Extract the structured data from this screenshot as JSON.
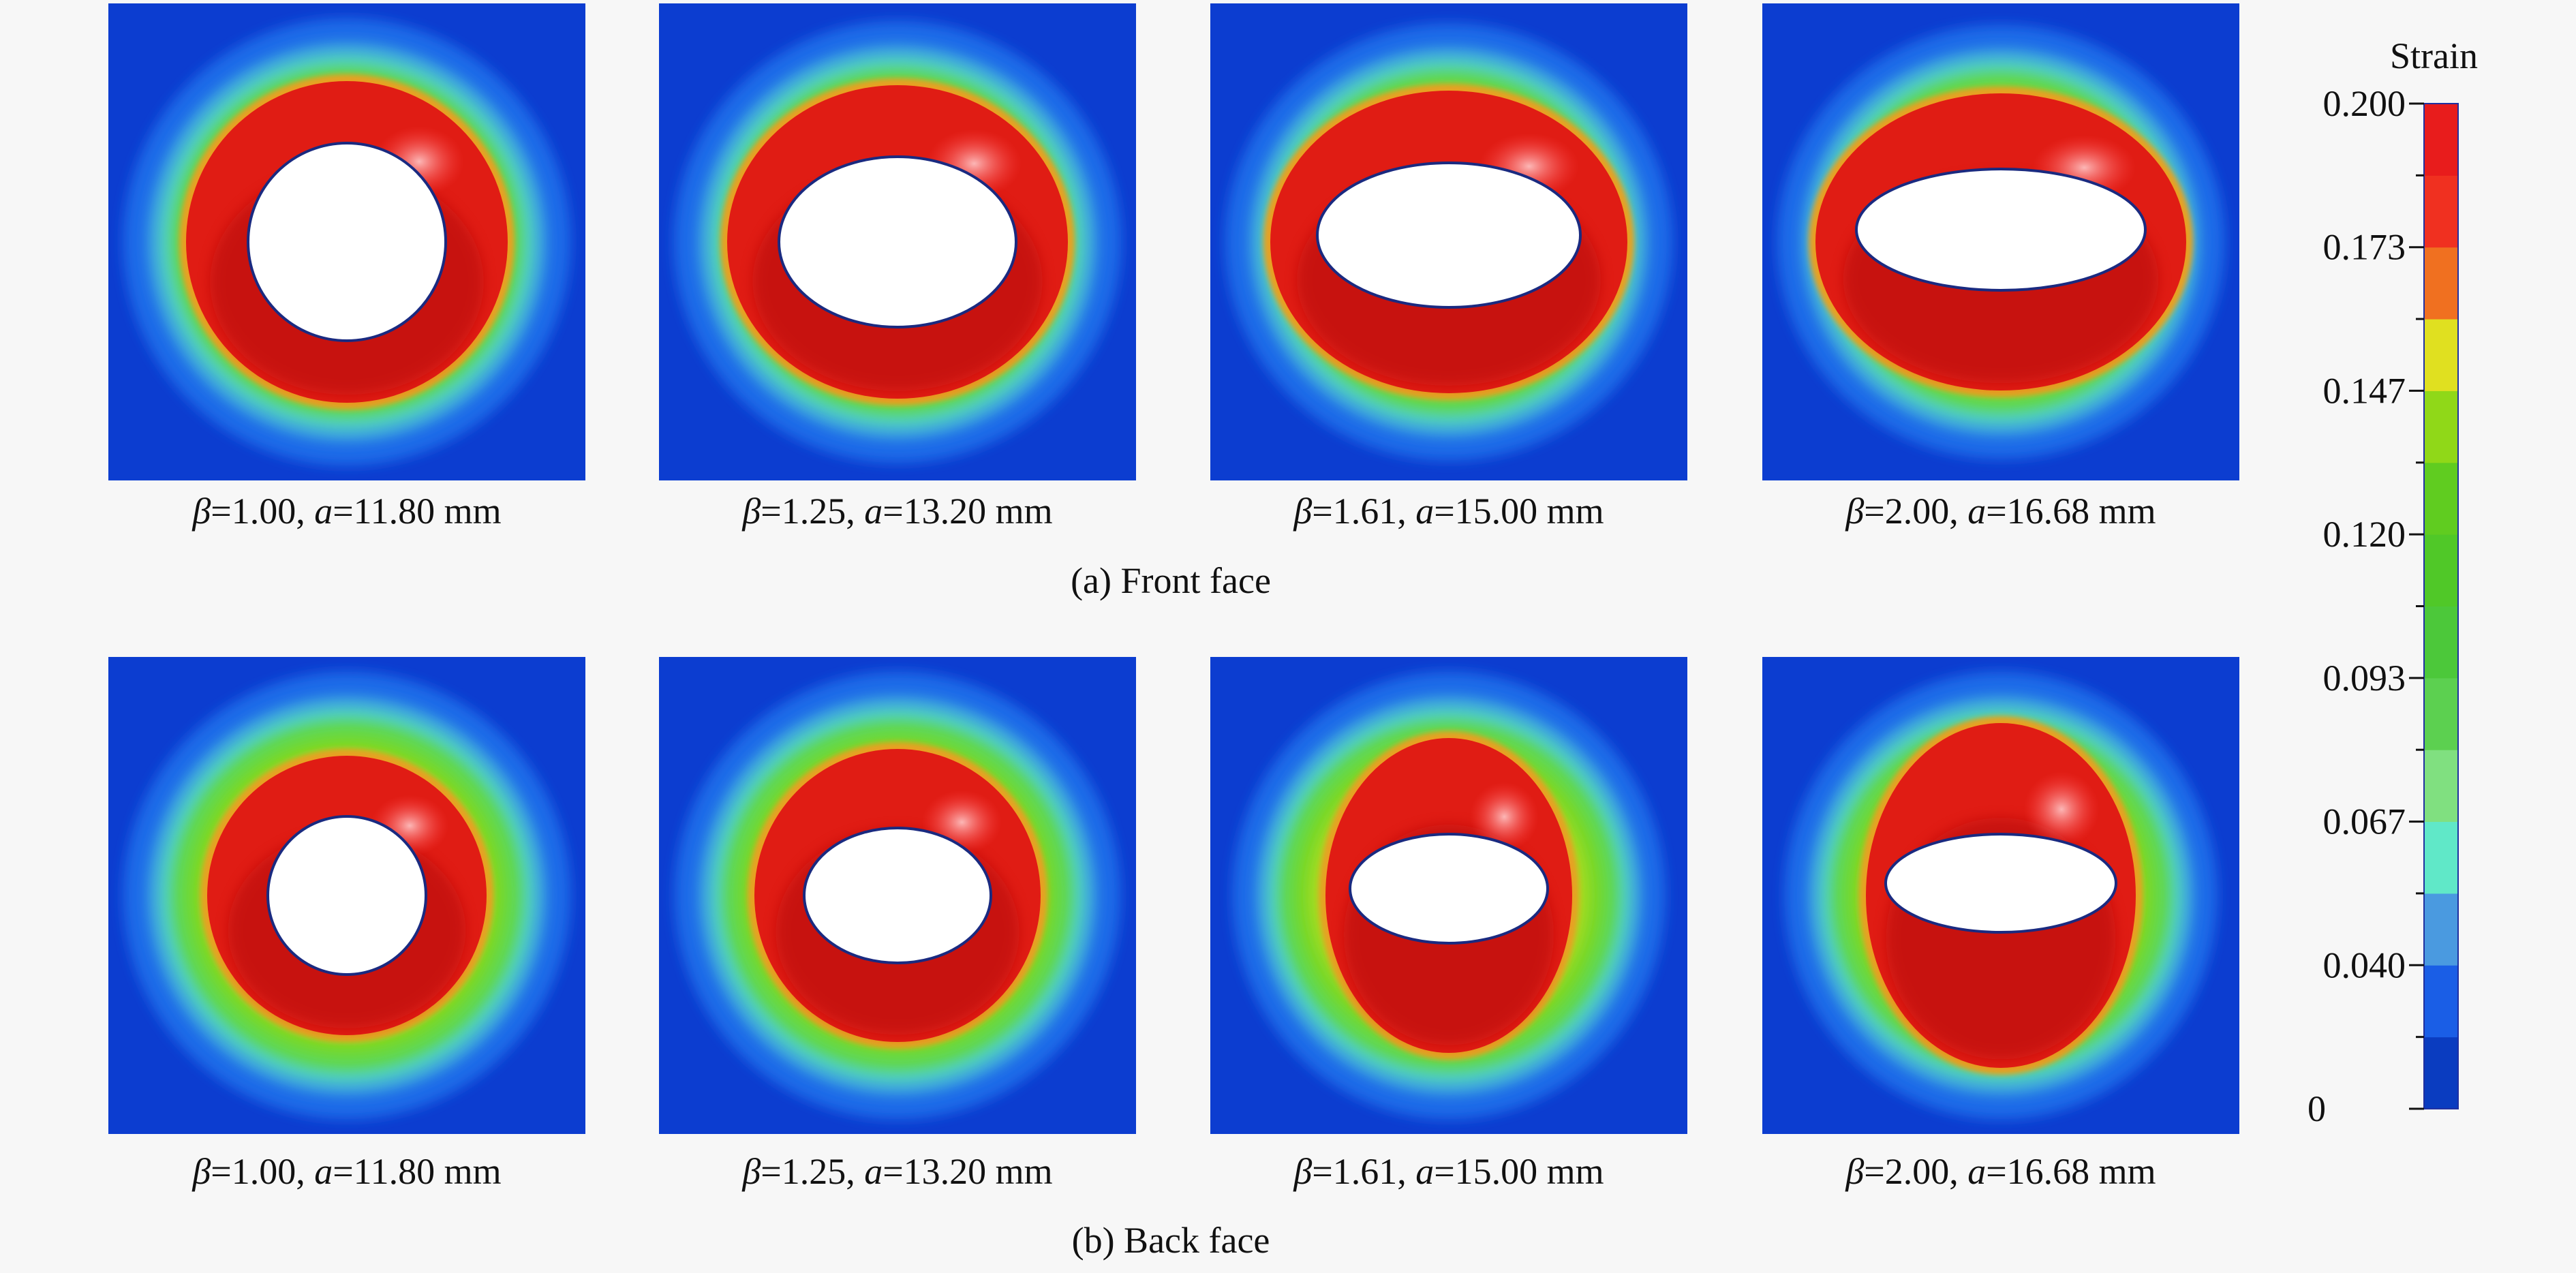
{
  "figure": {
    "rows": [
      {
        "caption": "(a) Front face",
        "panels": [
          {
            "label": [
              "β",
              "=1.00, ",
              "a",
              "=11.80 mm"
            ]
          },
          {
            "label": [
              "β",
              "=1.25, ",
              "a",
              "=13.20 mm"
            ]
          },
          {
            "label": [
              "β",
              "=1.61, ",
              "a",
              "=15.00 mm"
            ]
          },
          {
            "label": [
              "β",
              "=2.00, ",
              "a",
              "=16.68 mm"
            ]
          }
        ]
      },
      {
        "caption": "(b) Back face",
        "panels": [
          {
            "label": [
              "β",
              "=1.00, ",
              "a",
              "=11.80 mm"
            ]
          },
          {
            "label": [
              "β",
              "=1.25, ",
              "a",
              "=13.20 mm"
            ]
          },
          {
            "label": [
              "β",
              "=1.61, ",
              "a",
              "=15.00 mm"
            ]
          },
          {
            "label": [
              "β",
              "=2.00, ",
              "a",
              "=16.68 mm"
            ]
          }
        ]
      }
    ],
    "colorbar": {
      "title": "Strain",
      "labels": [
        "0.200",
        "0.173",
        "0.147",
        "0.120",
        "0.093",
        "0.067",
        "0.040",
        "0"
      ]
    }
  }
}
